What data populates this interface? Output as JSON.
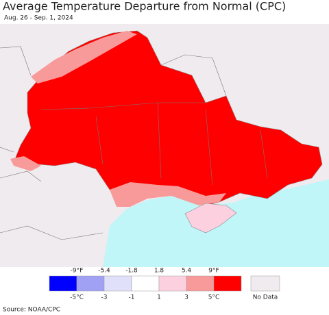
{
  "header": {
    "title": "Average Temperature Departure from Normal (CPC)",
    "subtitle": "Aug. 26 - Sep. 1, 2024"
  },
  "legend": {
    "fahrenheit_labels": [
      "-9°F",
      "-5.4",
      "-1.8",
      "1.8",
      "5.4",
      "9°F"
    ],
    "celsius_labels": [
      "-5°C",
      "-3",
      "-1",
      "1",
      "3",
      "5°C"
    ],
    "colors": [
      "#0000ff",
      "#a0a0f5",
      "#e0e0fa",
      "#ffffff",
      "#fdd0e0",
      "#f99a9a",
      "#ff0000"
    ],
    "no_data": "No Data",
    "no_data_color": "#efebee"
  },
  "source": "Source: NOAA/CPC"
}
